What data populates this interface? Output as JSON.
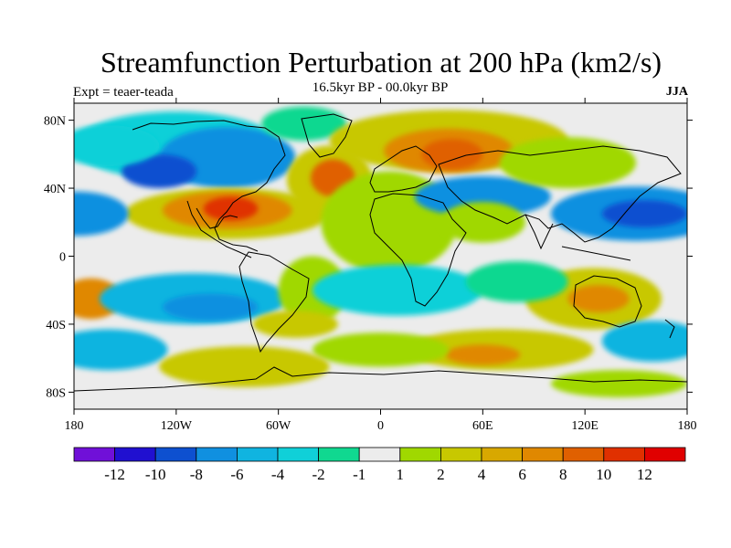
{
  "header": {
    "title": "Streamfunction Perturbation at 200 hPa (km2/s)",
    "experiment": "Expt = teaer-teada",
    "period": "16.5kyr BP - 00.0kyr BP",
    "season": "JJA"
  },
  "axes": {
    "lat_labels": [
      "80N",
      "40N",
      "0",
      "40S",
      "80S"
    ],
    "lat_values": [
      80,
      40,
      0,
      -40,
      -80
    ],
    "lon_labels": [
      "180",
      "120W",
      "60W",
      "0",
      "60E",
      "120E",
      "180"
    ],
    "lon_values": [
      -180,
      -120,
      -60,
      0,
      60,
      120,
      180
    ],
    "lon_range": [
      -180,
      180
    ],
    "lat_range": [
      -90,
      90
    ]
  },
  "colorbar": {
    "colors": [
      "#7010d8",
      "#2010d0",
      "#0d50d0",
      "#1090e0",
      "#10b4e0",
      "#10d0d8",
      "#10d890",
      "#ececec",
      "#a0d800",
      "#c8c800",
      "#d8a800",
      "#e08800",
      "#e06000",
      "#e03000",
      "#e00000"
    ],
    "labels": [
      "-12",
      "-10",
      "-8",
      "-6",
      "-4",
      "-2",
      "-1",
      "1",
      "2",
      "4",
      "6",
      "8",
      "10",
      "12"
    ]
  },
  "map_data": {
    "neutral_color": "#ececec",
    "blobs": [
      {
        "lon": -120,
        "lat": 65,
        "rlon": 60,
        "rlat": 20,
        "level": 5
      },
      {
        "lon": -90,
        "lat": 58,
        "rlon": 40,
        "rlat": 18,
        "level": 3
      },
      {
        "lon": -130,
        "lat": 50,
        "rlon": 22,
        "rlat": 10,
        "level": 2
      },
      {
        "lon": -160,
        "lat": 65,
        "rlon": 30,
        "rlat": 12,
        "level": 5
      },
      {
        "lon": -45,
        "lat": 78,
        "rlon": 25,
        "rlat": 10,
        "level": 6
      },
      {
        "lon": -30,
        "lat": 45,
        "rlon": 25,
        "rlat": 20,
        "level": 9
      },
      {
        "lon": -28,
        "lat": 46,
        "rlon": 13,
        "rlat": 11,
        "level": 12
      },
      {
        "lon": -90,
        "lat": 25,
        "rlon": 60,
        "rlat": 15,
        "level": 9
      },
      {
        "lon": -90,
        "lat": 27,
        "rlon": 38,
        "rlat": 11,
        "level": 11
      },
      {
        "lon": -88,
        "lat": 28,
        "rlon": 16,
        "rlat": 7,
        "level": 13
      },
      {
        "lon": -178,
        "lat": 25,
        "rlon": 30,
        "rlat": 13,
        "level": 3
      },
      {
        "lon": 5,
        "lat": 20,
        "rlon": 40,
        "rlat": 30,
        "level": 8
      },
      {
        "lon": 40,
        "lat": 68,
        "rlon": 70,
        "rlat": 18,
        "level": 9
      },
      {
        "lon": 40,
        "lat": 62,
        "rlon": 38,
        "rlat": 13,
        "level": 11
      },
      {
        "lon": 42,
        "lat": 60,
        "rlon": 18,
        "rlat": 9,
        "level": 12
      },
      {
        "lon": 60,
        "lat": 35,
        "rlon": 40,
        "rlat": 12,
        "level": 3
      },
      {
        "lon": 150,
        "lat": 25,
        "rlon": 50,
        "rlat": 16,
        "level": 3
      },
      {
        "lon": 155,
        "lat": 25,
        "rlon": 25,
        "rlat": 8,
        "level": 2
      },
      {
        "lon": 110,
        "lat": 55,
        "rlon": 40,
        "rlat": 15,
        "level": 8
      },
      {
        "lon": -170,
        "lat": -25,
        "rlon": 18,
        "rlat": 12,
        "level": 11
      },
      {
        "lon": -110,
        "lat": -25,
        "rlon": 55,
        "rlat": 15,
        "level": 4
      },
      {
        "lon": -100,
        "lat": -30,
        "rlon": 28,
        "rlat": 8,
        "level": 3
      },
      {
        "lon": -40,
        "lat": -20,
        "rlon": 20,
        "rlat": 20,
        "level": 8
      },
      {
        "lon": 10,
        "lat": -20,
        "rlon": 50,
        "rlat": 15,
        "level": 5
      },
      {
        "lon": 60,
        "lat": 20,
        "rlon": 25,
        "rlat": 12,
        "level": 8
      },
      {
        "lon": 125,
        "lat": -25,
        "rlon": 40,
        "rlat": 18,
        "level": 9
      },
      {
        "lon": 128,
        "lat": -25,
        "rlon": 18,
        "rlat": 8,
        "level": 11
      },
      {
        "lon": 80,
        "lat": -15,
        "rlon": 30,
        "rlat": 12,
        "level": 6
      },
      {
        "lon": 160,
        "lat": -50,
        "rlon": 30,
        "rlat": 12,
        "level": 4
      },
      {
        "lon": -160,
        "lat": -55,
        "rlon": 35,
        "rlat": 12,
        "level": 4
      },
      {
        "lon": -50,
        "lat": -40,
        "rlon": 25,
        "rlat": 8,
        "level": 9
      },
      {
        "lon": 70,
        "lat": -55,
        "rlon": 55,
        "rlat": 12,
        "level": 9
      },
      {
        "lon": 60,
        "lat": -58,
        "rlon": 22,
        "rlat": 6,
        "level": 11
      },
      {
        "lon": 0,
        "lat": -55,
        "rlon": 40,
        "rlat": 10,
        "level": 8
      },
      {
        "lon": -80,
        "lat": -65,
        "rlon": 50,
        "rlat": 12,
        "level": 9
      },
      {
        "lon": 140,
        "lat": -75,
        "rlon": 40,
        "rlat": 8,
        "level": 8
      }
    ]
  }
}
